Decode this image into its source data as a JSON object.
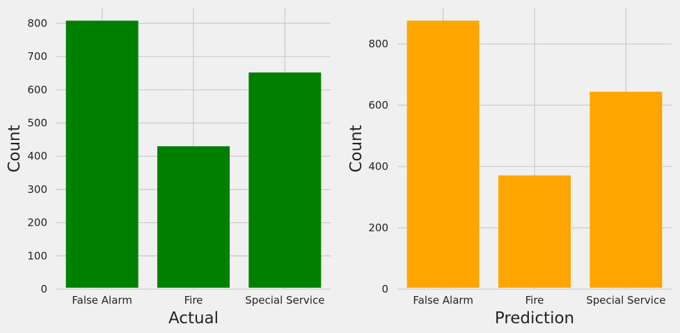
{
  "chart_data": [
    {
      "type": "bar",
      "categories": [
        "False Alarm",
        "Fire",
        "Special Service"
      ],
      "values": [
        808,
        430,
        652
      ],
      "xlabel": "Actual",
      "ylabel": "Count",
      "ylim": [
        0,
        845
      ],
      "yticks": [
        0,
        100,
        200,
        300,
        400,
        500,
        600,
        700,
        800
      ],
      "color": "#008000",
      "grid": true
    },
    {
      "type": "bar",
      "categories": [
        "False Alarm",
        "Fire",
        "Special Service"
      ],
      "values": [
        876,
        371,
        644
      ],
      "xlabel": "Prediction",
      "ylabel": "Count",
      "ylim": [
        0,
        916
      ],
      "yticks": [
        0,
        200,
        400,
        600,
        800
      ],
      "color": "#ffa500",
      "grid": true
    }
  ]
}
